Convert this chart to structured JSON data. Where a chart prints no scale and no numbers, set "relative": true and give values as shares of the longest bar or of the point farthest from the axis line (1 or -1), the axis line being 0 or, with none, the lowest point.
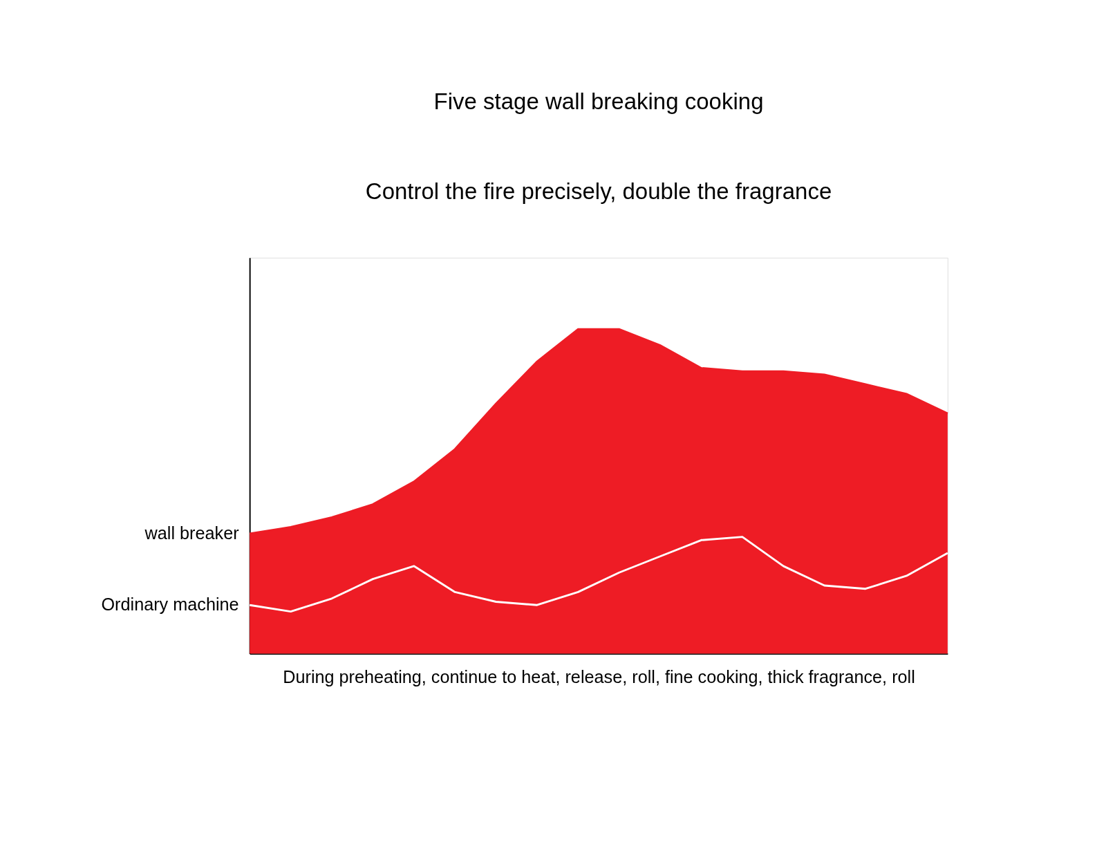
{
  "chart_data": {
    "type": "area",
    "title": "Five stage wall breaking cooking",
    "subtitle": "Control the fire precisely, double the fragrance",
    "xlabel": "During preheating, continue to heat, release, roll, fine cooking, thick fragrance, roll",
    "relative": true,
    "categories": [
      null,
      null,
      null,
      null,
      null,
      null,
      null,
      null,
      null,
      null,
      null,
      null,
      null,
      null,
      null,
      null,
      null,
      null
    ],
    "series": [
      {
        "name": "wall breaker",
        "color": "#ee1c25",
        "values": [
          0.37,
          0.39,
          0.42,
          0.46,
          0.53,
          0.63,
          0.77,
          0.9,
          1.0,
          1.0,
          0.95,
          0.88,
          0.87,
          0.87,
          0.86,
          0.83,
          0.8,
          0.74
        ]
      },
      {
        "name": "Ordinary machine",
        "type": "line",
        "color": "#ffffff",
        "values": [
          0.15,
          0.13,
          0.17,
          0.23,
          0.27,
          0.19,
          0.16,
          0.15,
          0.19,
          0.25,
          0.3,
          0.35,
          0.36,
          0.27,
          0.21,
          0.2,
          0.24,
          0.31
        ]
      }
    ]
  }
}
